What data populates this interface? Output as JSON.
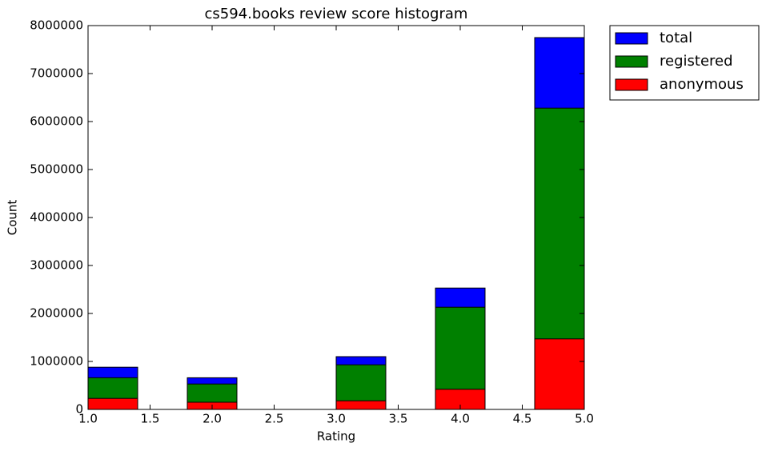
{
  "chart_data": {
    "type": "histogram",
    "title": "cs594.books review score histogram",
    "xlabel": "Rating",
    "ylabel": "Count",
    "bins": [
      1.0,
      1.4,
      1.8,
      2.2,
      2.6,
      3.0,
      3.4,
      3.8,
      4.2,
      4.6,
      5.0
    ],
    "series": [
      {
        "name": "total",
        "color": "#0000ff",
        "values": [
          880000,
          0,
          660000,
          0,
          0,
          1100000,
          0,
          2530000,
          0,
          7750000
        ]
      },
      {
        "name": "registered",
        "color": "#008000",
        "values": [
          660000,
          0,
          530000,
          0,
          0,
          930000,
          0,
          2130000,
          0,
          6280000
        ]
      },
      {
        "name": "anonymous",
        "color": "#ff0000",
        "values": [
          230000,
          0,
          150000,
          0,
          0,
          180000,
          0,
          420000,
          0,
          1470000
        ]
      }
    ],
    "xlim": [
      1,
      5
    ],
    "ylim": [
      0,
      8000000
    ],
    "xticks": [
      {
        "value": 1,
        "label": "1.0"
      },
      {
        "value": 1.5,
        "label": "1.5"
      },
      {
        "value": 2,
        "label": "2.0"
      },
      {
        "value": 2.5,
        "label": "2.5"
      },
      {
        "value": 3,
        "label": "3.0"
      },
      {
        "value": 3.5,
        "label": "3.5"
      },
      {
        "value": 4,
        "label": "4.0"
      },
      {
        "value": 4.5,
        "label": "4.5"
      },
      {
        "value": 5,
        "label": "5.0"
      }
    ],
    "yticks": [
      0,
      1000000,
      2000000,
      3000000,
      4000000,
      5000000,
      6000000,
      7000000,
      8000000
    ],
    "legend": "outside upper right"
  }
}
